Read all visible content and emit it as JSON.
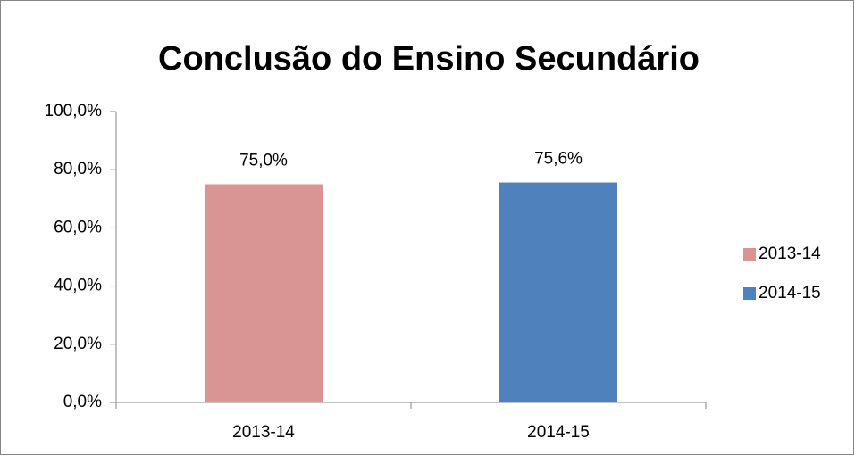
{
  "chart_data": {
    "type": "bar",
    "title": "Conclusão do Ensino Secundário",
    "categories": [
      "2013-14",
      "2014-15"
    ],
    "series": [
      {
        "name": "2013-14",
        "color": "#d99594",
        "values": [
          75.0,
          null
        ],
        "value_labels": [
          "75,0%",
          null
        ]
      },
      {
        "name": "2014-15",
        "color": "#4f81bd",
        "values": [
          null,
          75.6
        ],
        "value_labels": [
          null,
          "75,6%"
        ]
      }
    ],
    "ylim": [
      0,
      100
    ],
    "yticks": [
      {
        "value": 0,
        "label": "0,0%"
      },
      {
        "value": 20,
        "label": "20,0%"
      },
      {
        "value": 40,
        "label": "40,0%"
      },
      {
        "value": 60,
        "label": "60,0%"
      },
      {
        "value": 80,
        "label": "80,0%"
      },
      {
        "value": 100,
        "label": "100,0%"
      }
    ],
    "grid": false,
    "legend": "right"
  }
}
